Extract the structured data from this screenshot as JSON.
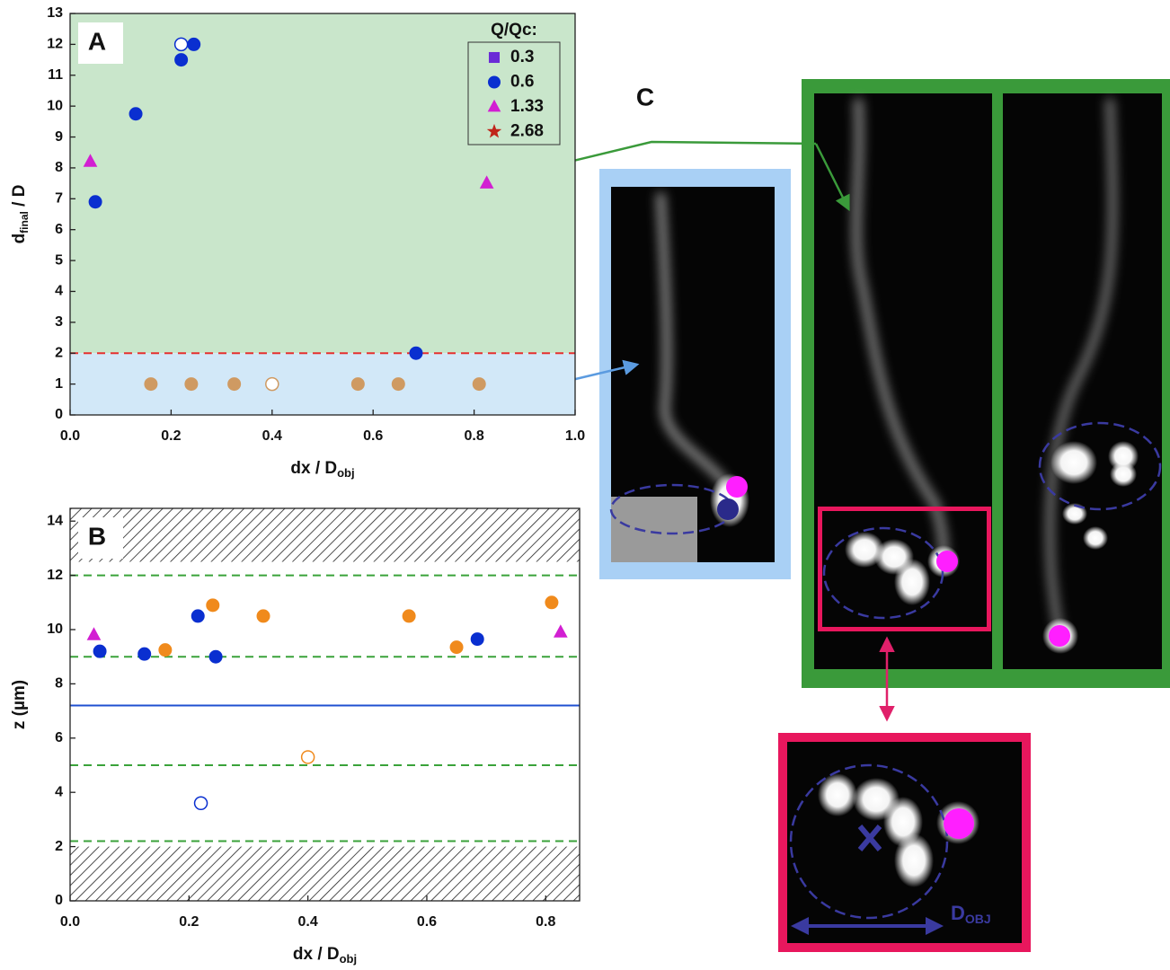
{
  "chart_data": [
    {
      "type": "scatter",
      "panel_label": "A",
      "xlabel": {
        "main": "dx / D",
        "sub": "obj"
      },
      "ylabel": {
        "main": "d",
        "sub": "final",
        "rest": " / D"
      },
      "xlim": [
        0,
        1
      ],
      "ylim": [
        0,
        13
      ],
      "xticks": [
        {
          "value": 0,
          "label": "0.0"
        },
        0.2,
        0.4,
        0.6,
        0.8,
        {
          "value": 1,
          "label": "1.0"
        }
      ],
      "yticks": [
        0,
        1,
        2,
        3,
        4,
        5,
        6,
        7,
        8,
        9,
        10,
        11,
        12,
        13
      ],
      "grid": false,
      "regions": [
        {
          "from": 2,
          "to": 13,
          "color": "#c9e6cb"
        },
        {
          "from": 0,
          "to": 2,
          "color": "#d2e8f8"
        }
      ],
      "hlines": [
        {
          "value": 2,
          "color": "#e53030",
          "style": "dashed"
        }
      ],
      "legend": "upper right",
      "legend_title": "Q/Qc:",
      "series": [
        {
          "name": "0.3",
          "color": "#6a2bd6",
          "marker": "square",
          "filled": true,
          "x": [],
          "values": []
        },
        {
          "name": "0.6",
          "color": "#0a2fd0",
          "marker": "circle",
          "filled": true,
          "x": [
            0.05,
            0.13,
            0.22,
            0.245,
            0.685
          ],
          "values": [
            6.9,
            9.75,
            11.5,
            12,
            2.0
          ]
        },
        {
          "name": "1.33",
          "color": "#d21fd2",
          "marker": "triangle",
          "filled": true,
          "x": [
            0.04,
            0.825
          ],
          "values": [
            8.2,
            7.5
          ]
        },
        {
          "name": "2.68",
          "color": "#c0251a",
          "marker": "star",
          "filled": true,
          "x": [],
          "values": []
        },
        {
          "color": "#0a2fd0",
          "marker": "circle",
          "filled": false,
          "x": [
            0.22
          ],
          "values": [
            12
          ]
        },
        {
          "color": "#cf9a62",
          "marker": "circle",
          "filled": true,
          "x": [
            0.16,
            0.24,
            0.325,
            0.57,
            0.65,
            0.81
          ],
          "values": [
            1,
            1,
            1,
            1,
            1,
            1
          ]
        },
        {
          "color": "#cf9a62",
          "marker": "circle",
          "filled": false,
          "x": [
            0.4
          ],
          "values": [
            1
          ]
        }
      ]
    },
    {
      "type": "scatter",
      "panel_label": "B",
      "xlabel": {
        "main": "dx / D",
        "sub": "obj"
      },
      "ylabel": {
        "main": "z (µm)"
      },
      "xlim": [
        0,
        0.857
      ],
      "ylim": [
        0,
        14.47
      ],
      "xticks": [
        {
          "value": 0,
          "label": "0.0"
        },
        0.2,
        0.4,
        0.6,
        0.8
      ],
      "yticks": [
        0,
        2,
        4,
        6,
        8,
        10,
        12,
        14
      ],
      "grid": false,
      "hatched": [
        {
          "from": 0,
          "to": 2
        },
        {
          "from": 12.5,
          "to": 14.47
        }
      ],
      "hlines": [
        {
          "value": 12,
          "color": "#3aa23a",
          "style": "dashed"
        },
        {
          "value": 9,
          "color": "#3aa23a",
          "style": "dashed"
        },
        {
          "value": 7.2,
          "color": "#1f4fd0",
          "style": "solid"
        },
        {
          "value": 5,
          "color": "#3aa23a",
          "style": "dashed"
        },
        {
          "value": 2.2,
          "color": "#3aa23a",
          "style": "dashed"
        }
      ],
      "series": [
        {
          "color": "#0a2fd0",
          "marker": "circle",
          "filled": true,
          "x": [
            0.05,
            0.125,
            0.215,
            0.245,
            0.685
          ],
          "values": [
            9.2,
            9.1,
            10.5,
            9.0,
            9.65
          ]
        },
        {
          "color": "#0a2fd0",
          "marker": "circle",
          "filled": false,
          "x": [
            0.22
          ],
          "values": [
            3.6
          ]
        },
        {
          "color": "#f08a1c",
          "marker": "circle",
          "filled": true,
          "x": [
            0.16,
            0.24,
            0.325,
            0.57,
            0.65,
            0.81
          ],
          "values": [
            9.25,
            10.9,
            10.5,
            10.5,
            9.35,
            11.0
          ]
        },
        {
          "color": "#f08a1c",
          "marker": "circle",
          "filled": false,
          "x": [
            0.4
          ],
          "values": [
            5.3
          ]
        },
        {
          "color": "#d21fd2",
          "marker": "triangle",
          "filled": true,
          "x": [
            0.04,
            0.825
          ],
          "values": [
            9.8,
            9.9
          ]
        }
      ]
    }
  ],
  "panel_c": {
    "label": "C",
    "scale_label": {
      "main": "D",
      "sub": "OBJ"
    }
  }
}
